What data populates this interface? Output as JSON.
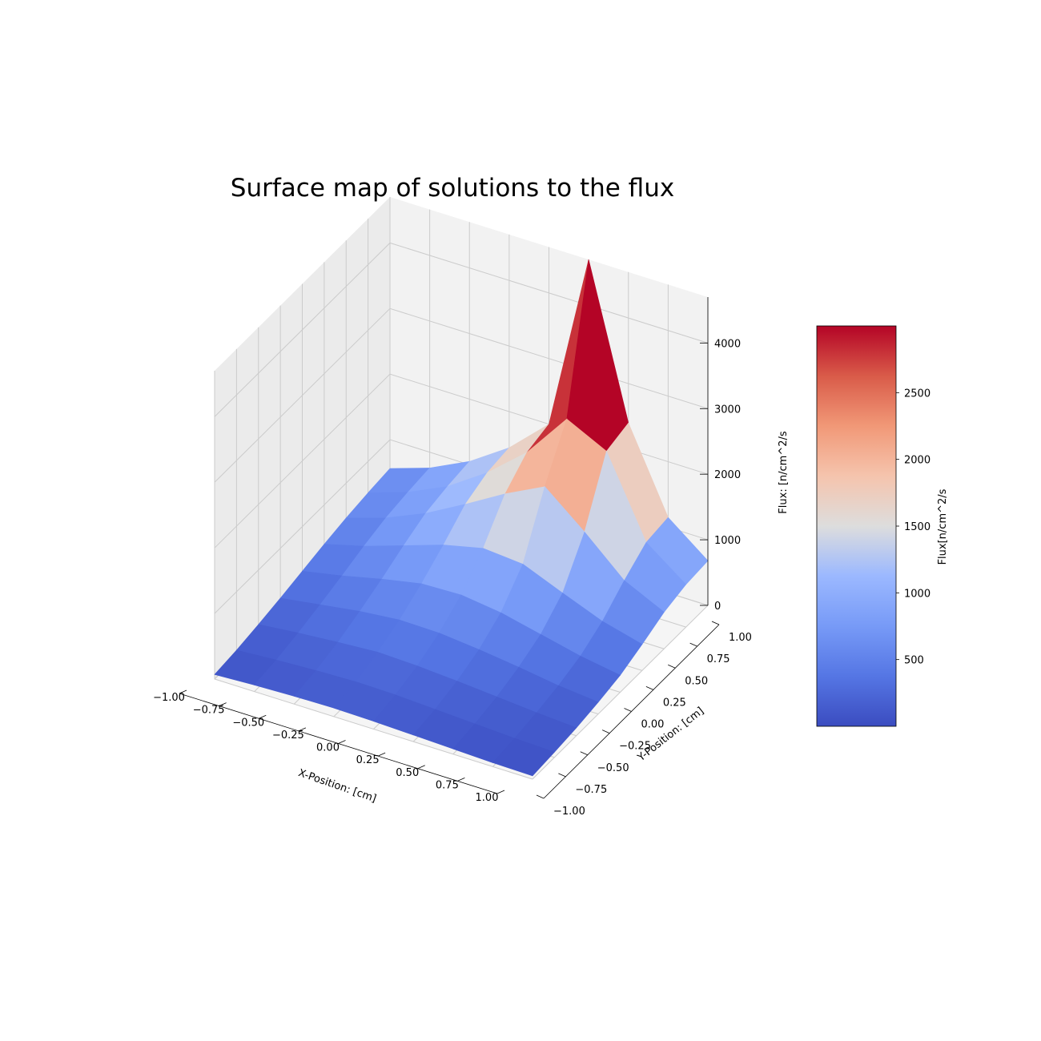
{
  "chart_data": {
    "type": "surface3d",
    "title": "Surface map of solutions to the flux",
    "xlabel": "X-Position: [cm]",
    "ylabel": "Y-Position: [cm]",
    "zlabel": "Flux: [n/cm^2/s",
    "xlim": [
      -1.0,
      1.0
    ],
    "ylim": [
      -1.0,
      1.0
    ],
    "zlim": [
      0,
      4700
    ],
    "x_ticks": [
      "−1.00",
      "−0.75",
      "−0.50",
      "−0.25",
      "0.00",
      "0.25",
      "0.50",
      "0.75",
      "1.00"
    ],
    "y_ticks": [
      "−1.00",
      "−0.75",
      "−0.50",
      "−0.25",
      "0.00",
      "0.25",
      "0.50",
      "0.75",
      "1.00"
    ],
    "z_ticks": [
      "0",
      "1000",
      "2000",
      "3000",
      "4000"
    ],
    "grid": true,
    "colormap": "coolwarm",
    "peak": {
      "x": 0.6,
      "y": 0.9,
      "value": 4700
    },
    "surface": {
      "note_x": "rows follow y from -1.00 to 1.00, columns follow x from -1.00 to 1.00, step 0.25",
      "x": [
        -1.0,
        -0.75,
        -0.5,
        -0.25,
        0.0,
        0.25,
        0.5,
        0.75,
        1.0
      ],
      "y": [
        -1.0,
        -0.75,
        -0.5,
        -0.25,
        0.0,
        0.25,
        0.5,
        0.75,
        1.0
      ],
      "z": [
        [
          70,
          100,
          120,
          130,
          120,
          100,
          80,
          60,
          50
        ],
        [
          110,
          150,
          180,
          200,
          190,
          160,
          130,
          100,
          80
        ],
        [
          170,
          230,
          280,
          320,
          300,
          260,
          210,
          160,
          120
        ],
        [
          240,
          330,
          420,
          480,
          470,
          410,
          330,
          240,
          180
        ],
        [
          320,
          440,
          580,
          700,
          720,
          640,
          500,
          360,
          260
        ],
        [
          400,
          560,
          760,
          960,
          1100,
          1050,
          800,
          560,
          400
        ],
        [
          470,
          660,
          920,
          1250,
          1600,
          1900,
          1400,
          850,
          560
        ],
        [
          520,
          720,
          1000,
          1400,
          1900,
          2600,
          2300,
          1100,
          650
        ],
        [
          560,
          760,
          1050,
          1450,
          2000,
          4700,
          2400,
          1150,
          680
        ]
      ]
    },
    "colorbar": {
      "label": "Flux[n/cm^2/s",
      "range": [
        0,
        3000
      ],
      "ticks": [
        "500",
        "1000",
        "1500",
        "2000",
        "2500"
      ]
    }
  }
}
